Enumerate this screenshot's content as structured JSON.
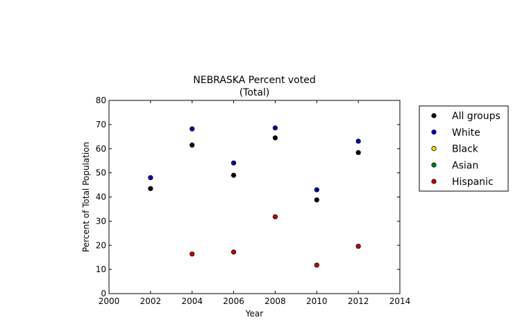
{
  "chart_data": {
    "type": "scatter",
    "title": "NEBRASKA Percent voted",
    "subtitle": "(Total)",
    "xlabel": "Year",
    "ylabel": "Percent of Total Population",
    "xlim": [
      2000,
      2014
    ],
    "ylim": [
      0,
      80
    ],
    "xticks": [
      2000,
      2002,
      2004,
      2006,
      2008,
      2010,
      2012,
      2014
    ],
    "yticks": [
      0,
      10,
      20,
      30,
      40,
      50,
      60,
      70,
      80
    ],
    "grid": false,
    "legend_position": "outside-right",
    "series": [
      {
        "name": "All groups",
        "color": "#000000",
        "x": [
          2002,
          2004,
          2006,
          2008,
          2010,
          2012
        ],
        "y": [
          43.5,
          61.5,
          49.0,
          64.5,
          38.8,
          58.4
        ]
      },
      {
        "name": "White",
        "color": "#0000cc",
        "x": [
          2002,
          2004,
          2006,
          2008,
          2010,
          2012
        ],
        "y": [
          48.0,
          68.2,
          54.1,
          68.6,
          43.0,
          63.1
        ]
      },
      {
        "name": "Black",
        "color": "#ffd700",
        "x": [],
        "y": []
      },
      {
        "name": "Asian",
        "color": "#008000",
        "x": [],
        "y": []
      },
      {
        "name": "Hispanic",
        "color": "#cc0000",
        "x": [
          2004,
          2006,
          2008,
          2010,
          2012
        ],
        "y": [
          16.4,
          17.2,
          31.8,
          11.8,
          19.6
        ]
      }
    ]
  }
}
